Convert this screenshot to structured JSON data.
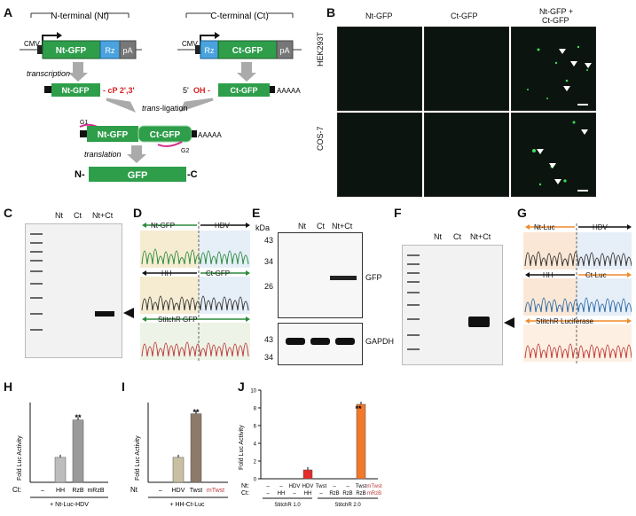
{
  "panels": {
    "A": "A",
    "B": "B",
    "C": "C",
    "D": "D",
    "E": "E",
    "F": "F",
    "G": "G",
    "H": "H",
    "I": "I",
    "J": "J"
  },
  "schematic": {
    "nt_header": "N-terminal (Nt)",
    "ct_header": "C-terminal (Ct)",
    "cmv": "CMV",
    "nt_gfp": "Nt-GFP",
    "ct_gfp": "Ct-GFP",
    "rz": "Rz",
    "pa": "pA",
    "transcription": "transcription",
    "cp_end": "- cP 2',3'",
    "oh_end_prefix": "5'",
    "oh_end": "OH -",
    "trans_ligation": "trans-ligation",
    "trans_ligation_suffix": "-ligation",
    "trans_prefix": "trans",
    "poly_a": "AAAAA",
    "g1": "G1",
    "g2": "G2",
    "translation": "translation",
    "n_term": "N-",
    "gfp": "GFP",
    "c_term": "-C"
  },
  "microscopy": {
    "columns": [
      "Nt-GFP",
      "Ct-GFP",
      "Nt-GFP +\nCt-GFP"
    ],
    "col3_line1": "Nt-GFP +",
    "col3_line2": "Ct-GFP",
    "rows": [
      "HEK293T",
      "COS-7"
    ],
    "colors": {
      "background": "#0b140e",
      "signal": "#3fdc5a",
      "arrow": "#ffffff"
    }
  },
  "gel_c": {
    "lanes": [
      "Nt",
      "Ct",
      "Nt+Ct"
    ]
  },
  "seq_d": {
    "labels": [
      "Nt-GFP",
      "HDV",
      "HH",
      "Ct-GFP",
      "StitchR GFP"
    ]
  },
  "blot_e": {
    "unit": "kDa",
    "lanes": [
      "Nt",
      "Ct",
      "Nt+Ct"
    ],
    "top_markers": [
      "43",
      "34",
      "26"
    ],
    "bottom_markers": [
      "43",
      "34"
    ],
    "top_label": "GFP",
    "bottom_label": "GAPDH"
  },
  "gel_f": {
    "lanes": [
      "Nt",
      "Ct",
      "Nt+Ct"
    ]
  },
  "seq_g": {
    "labels": [
      "Nt-Luc",
      "HDV",
      "HH",
      "Ct-Luc",
      "StitchR Luciferase"
    ]
  },
  "chart_h": {
    "ylabel": "Fold Luc Activity",
    "row_label": "Ct:",
    "categories": [
      "–",
      "HH",
      "RzB",
      "mRzB"
    ],
    "footer": "+ Nt-Luc-HDV",
    "significance": "**"
  },
  "chart_i": {
    "ylabel": "Fold Luc Activity",
    "row_label": "Nt",
    "categories": [
      "–",
      "HDV",
      "Twst",
      "mTwst"
    ],
    "footer": "+ HH-Ct-Luc",
    "significance": "**"
  },
  "chart_j": {
    "ylabel": "Fold Luc Activity",
    "row1_label": "Nt:",
    "row2_label": "Ct:",
    "nt_row": [
      "–",
      "–",
      "HDV",
      "HDV",
      "Twst",
      "–",
      "–",
      "Twst",
      "mTwst"
    ],
    "ct_row": [
      "–",
      "HH",
      "–",
      "HH",
      "–",
      "RzB",
      "RzB",
      "RzB",
      "mRzB"
    ],
    "yticks": [
      "0",
      "2",
      "4",
      "6",
      "8",
      "10"
    ],
    "group1": "StitchR 1.0",
    "group2": "StitchR 2.0",
    "significance": "**"
  },
  "chart_data": [
    {
      "type": "bar",
      "categories": [
        "–",
        "HH",
        "RzB",
        "mRzB"
      ],
      "values": [
        0,
        1.0,
        2.5,
        0
      ],
      "ylabel": "Fold Luc Activity",
      "ylim": [
        0,
        3.2
      ],
      "colors": [
        "#bdbdbd",
        "#bdbdbd",
        "#9a9a9a",
        "#bdbdbd"
      ]
    },
    {
      "type": "bar",
      "categories": [
        "–",
        "HDV",
        "Twst",
        "mTwst"
      ],
      "values": [
        0,
        1.0,
        2.75,
        0
      ],
      "ylabel": "Fold Luc Activity",
      "ylim": [
        0,
        3.2
      ],
      "colors": [
        "#c9c0a3",
        "#c9c0a3",
        "#8d7a68",
        "#c9c0a3"
      ]
    },
    {
      "type": "bar",
      "categories": [
        "–/–",
        "–/HH",
        "HDV/–",
        "HDV/HH",
        "Twst/–",
        "–/RzB",
        "–/RzB",
        "Twst/RzB",
        "mTwst/mRzB"
      ],
      "values": [
        0,
        0,
        0,
        1.0,
        0,
        0,
        0,
        8.4,
        0
      ],
      "ylabel": "Fold Luc Activity",
      "ylim": [
        0,
        10
      ],
      "colors": [
        "#e32b2b",
        "#e32b2b",
        "#e32b2b",
        "#e32b2b",
        "#f2782a",
        "#f2782a",
        "#f2782a",
        "#f2782a",
        "#f2782a"
      ]
    }
  ]
}
